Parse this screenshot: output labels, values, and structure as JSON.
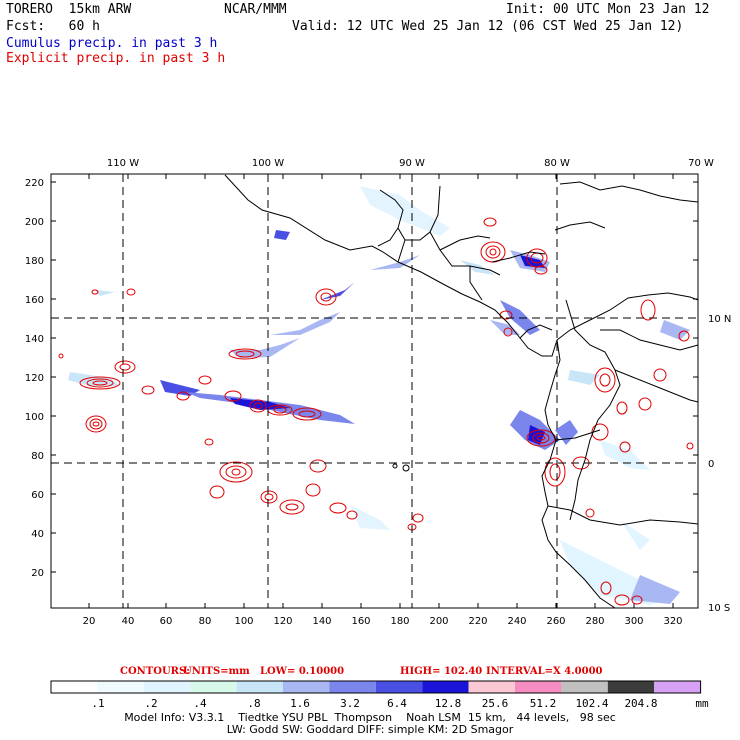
{
  "header": {
    "model": "TORERO  15km ARW",
    "org": "NCAR/MMM",
    "init": "Init: 00 UTC Mon 23 Jan 12",
    "fcst": "Fcst:   60 h",
    "valid": "Valid: 12 UTC Wed 25 Jan 12 (06 CST Wed 25 Jan 12)",
    "legend_cumulus": "Cumulus precip. in past 3 h",
    "legend_explicit": "Explicit precip. in past 3 h"
  },
  "map": {
    "top_lon_labels": [
      "110 W",
      "100 W",
      "90 W",
      "80 W",
      "70 W"
    ],
    "right_lat_labels": [
      "10 N",
      "0",
      "10 S"
    ],
    "left_ticks": [
      "220",
      "200",
      "180",
      "160",
      "140",
      "120",
      "100",
      "80",
      "60",
      "40",
      "20"
    ],
    "bottom_ticks": [
      "20",
      "40",
      "60",
      "80",
      "100",
      "120",
      "140",
      "160",
      "180",
      "200",
      "220",
      "240",
      "260",
      "280",
      "300",
      "320"
    ]
  },
  "contours": {
    "label": "CONTOURS:",
    "units": "UNITS=mm",
    "low": "LOW= 0.10000",
    "high": "HIGH= 102.40",
    "interval": "INTERVAL=X 4.0000"
  },
  "colorbar": {
    "unit": "mm",
    "labels": [
      ".1",
      ".2",
      ".4",
      ".8",
      "1.6",
      "3.2",
      "6.4",
      "12.8",
      "25.6",
      "51.2",
      "102.4",
      "204.8"
    ],
    "colors": [
      "#ffffff",
      "#f0fbff",
      "#e0f5ff",
      "#d7f9ea",
      "#c9e6f9",
      "#a9b7f3",
      "#7a86ec",
      "#4a4fe4",
      "#1a14d8",
      "#fbc9d4",
      "#f58dc3",
      "#c0c0c0",
      "#3c3c3c",
      "#d7a2f5"
    ]
  },
  "footer": {
    "line1": "Model Info: V3.3.1    Tiedtke YSU PBL  Thompson    Noah LSM  15 km,   44 levels,   98 sec",
    "line2": "LW: Godd SW: Goddard DIFF: simple KM: 2D Smagor"
  }
}
